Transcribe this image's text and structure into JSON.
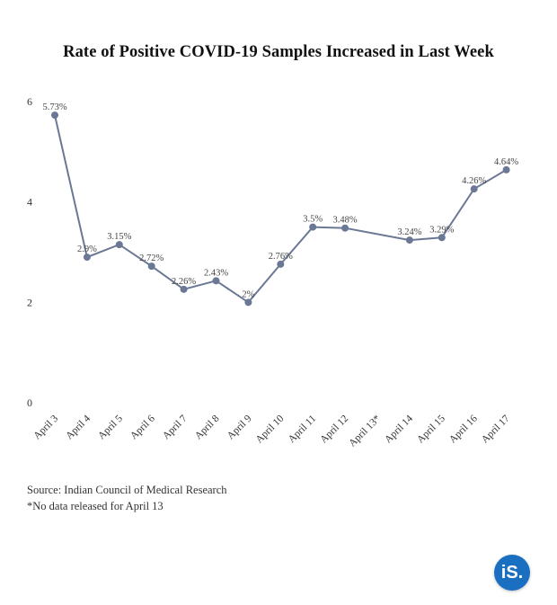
{
  "chart_data": {
    "type": "line",
    "title": "Rate of Positive COVID-19 Samples Increased in Last Week",
    "categories": [
      "April 3",
      "April 4",
      "April 5",
      "April 6",
      "April 7",
      "April 8",
      "April 9",
      "April 10",
      "April 11",
      "April 12",
      "April 13*",
      "April 14",
      "April 15",
      "April 16",
      "April 17"
    ],
    "values": [
      5.73,
      2.9,
      3.15,
      2.72,
      2.26,
      2.43,
      2.0,
      2.76,
      3.5,
      3.48,
      null,
      3.24,
      3.29,
      4.26,
      4.64
    ],
    "data_labels": [
      "5.73%",
      "2.9%",
      "3.15%",
      "2.72%",
      "2.26%",
      "2.43%",
      "2%",
      "2.76%",
      "3.5%",
      "3.48%",
      "",
      "3.24%",
      "3.29%",
      "4.26%",
      "4.64%"
    ],
    "yticks": [
      0,
      2,
      4,
      6
    ],
    "ylim": [
      0,
      6
    ],
    "grid": false,
    "line_color": "#6b7895"
  },
  "notes": {
    "source": "Source: Indian Council of Medical Research",
    "footnote": "*No data released for April 13"
  },
  "logo": {
    "text": "iS.",
    "color": "#1a6fc0"
  }
}
